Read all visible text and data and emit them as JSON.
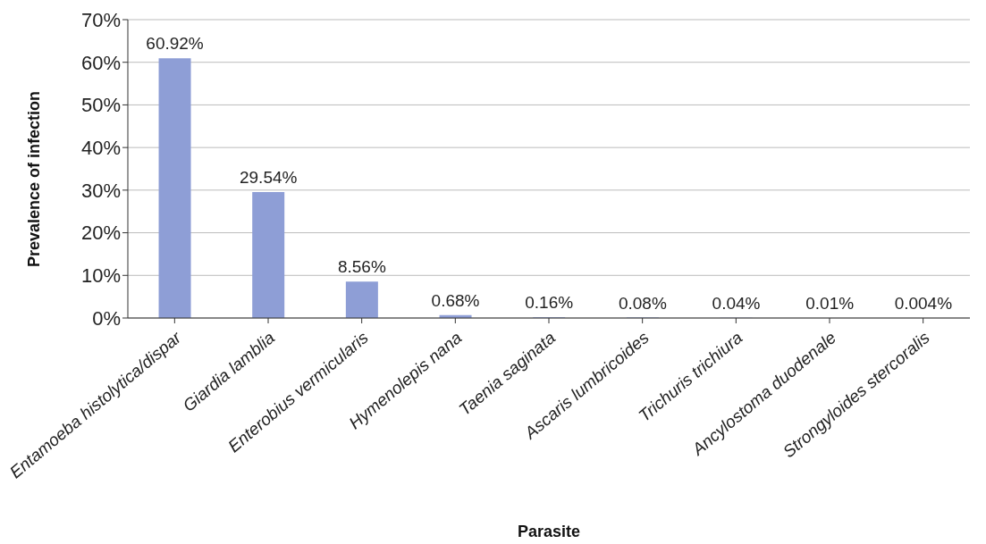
{
  "chart_data": {
    "type": "bar",
    "xlabel": "Parasite",
    "ylabel": "Prevalence of infection",
    "categories": [
      "Entamoeba histolytica/dispar",
      "Giardia lamblia",
      "Enterobius vermicularis",
      "Hymenolepis nana",
      "Taenia saginata",
      "Ascaris lumbricoides",
      "Trichuris trichiura",
      "Ancylostoma duodenale",
      "Strongyloides stercoralis"
    ],
    "values": [
      60.92,
      29.54,
      8.56,
      0.68,
      0.16,
      0.08,
      0.04,
      0.01,
      0.004
    ],
    "value_labels": [
      "60.92%",
      "29.54%",
      "8.56%",
      "0.68%",
      "0.16%",
      "0.08%",
      "0.04%",
      "0.01%",
      "0.004%"
    ],
    "color": "#8e9ed6",
    "ylim": [
      0,
      70
    ],
    "yticks": [
      {
        "value": 0,
        "label": "0%"
      },
      {
        "value": 10,
        "label": "10%"
      },
      {
        "value": 20,
        "label": "20%"
      },
      {
        "value": 30,
        "label": "30%"
      },
      {
        "value": 40,
        "label": "40%"
      },
      {
        "value": 50,
        "label": "50%"
      },
      {
        "value": 60,
        "label": "60%"
      },
      {
        "value": 70,
        "label": "70%"
      }
    ],
    "grid": "y"
  }
}
